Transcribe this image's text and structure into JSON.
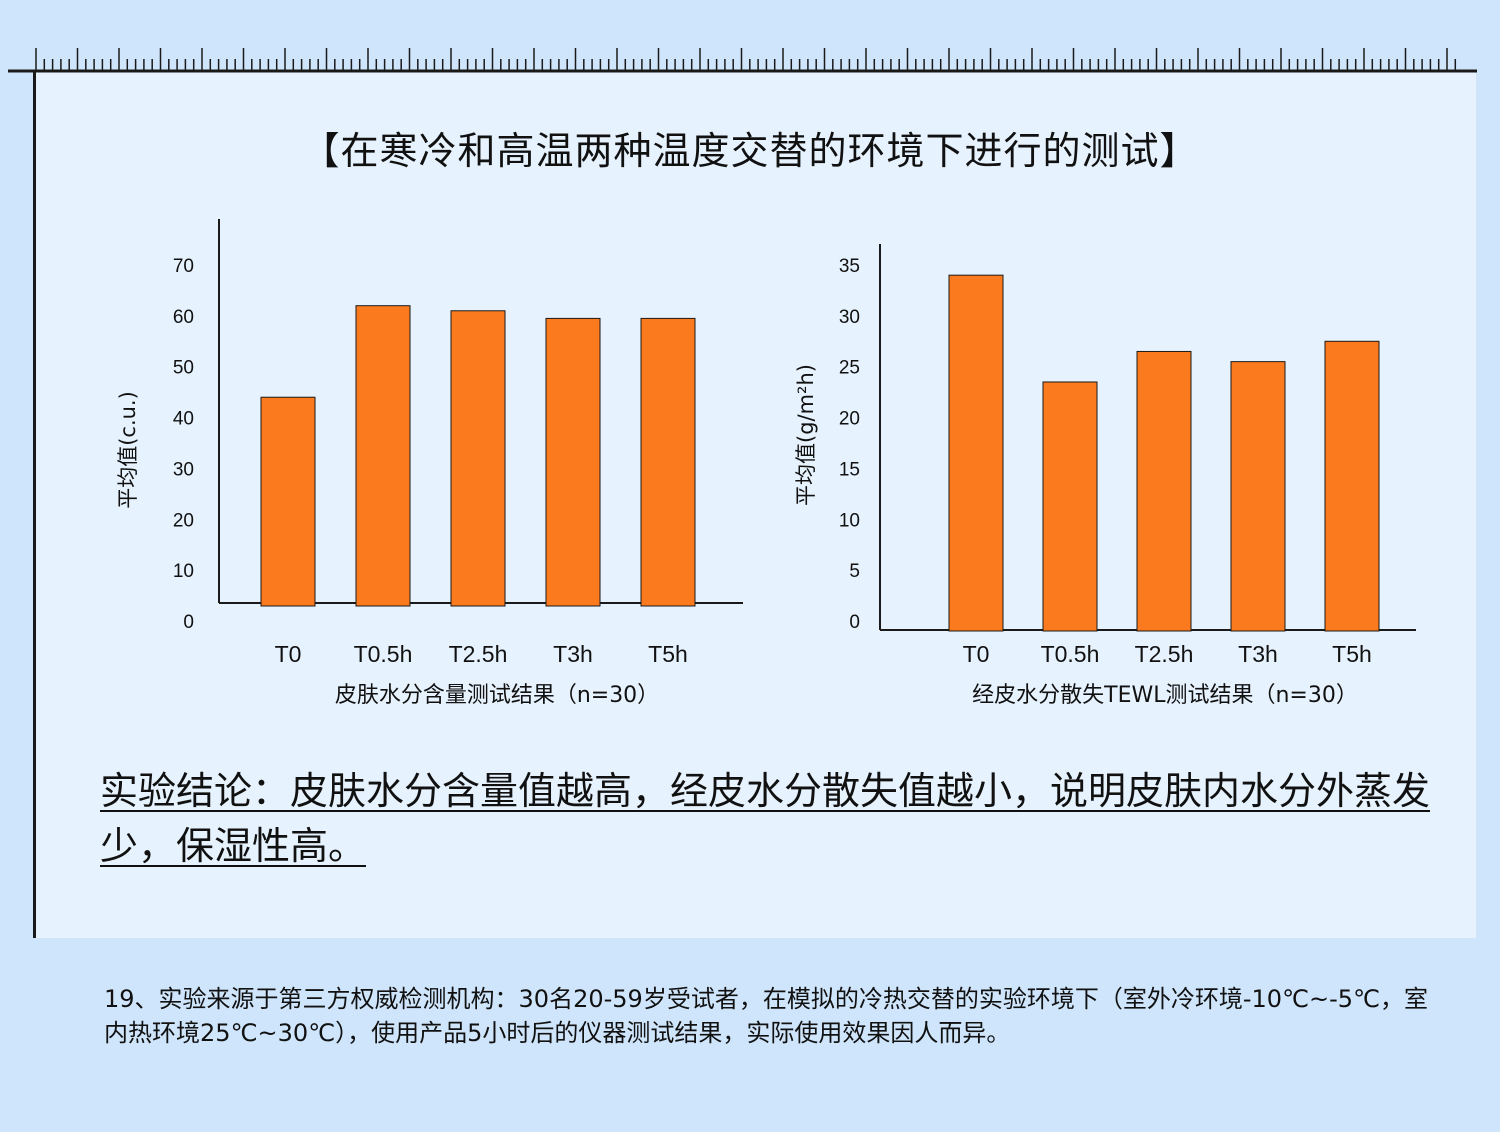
{
  "title": "【在寒冷和高温两种温度交替的环境下进行的测试】",
  "colors": {
    "background": "#cfe5fb",
    "panel": "#e6f2fd",
    "bar": "#fb7a1e",
    "axis": "#1a1a1a"
  },
  "chart_data": [
    {
      "type": "bar",
      "categories": [
        "T0",
        "T0.5h",
        "T2.5h",
        "T3h",
        "T5h"
      ],
      "values": [
        44,
        62,
        61,
        59.5,
        59.5
      ],
      "ylabel": "平均值(c.u.)",
      "xlabel": "皮肤水分含量测试结果（n=30）",
      "ylim": [
        0,
        70
      ],
      "yticks": [
        "0",
        "10",
        "20",
        "30",
        "40",
        "50",
        "60",
        "70"
      ],
      "grid": false,
      "legend": "none"
    },
    {
      "type": "bar",
      "categories": [
        "T0",
        "T0.5h",
        "T2.5h",
        "T3h",
        "T5h"
      ],
      "values": [
        34,
        23.5,
        26.5,
        25.5,
        27.5
      ],
      "ylabel": "平均值(g/m²h)",
      "xlabel": "经皮水分散失TEWL测试结果（n=30）",
      "ylim": [
        0,
        35
      ],
      "yticks": [
        "0",
        "5",
        "10",
        "15",
        "20",
        "25",
        "30",
        "35"
      ],
      "grid": false,
      "legend": "none"
    }
  ],
  "conclusion": "实验结论：皮肤水分含量值越高，经皮水分散失值越小，说明皮肤内水分外蒸发少，保湿性高。",
  "footnote": "19、实验来源于第三方权威检测机构：30名20-59岁受试者，在模拟的冷热交替的实验环境下（室外冷环境-10℃~-5℃，室内热环境25℃~30℃），使用产品5小时后的仪器测试结果，实际使用效果因人而异。"
}
